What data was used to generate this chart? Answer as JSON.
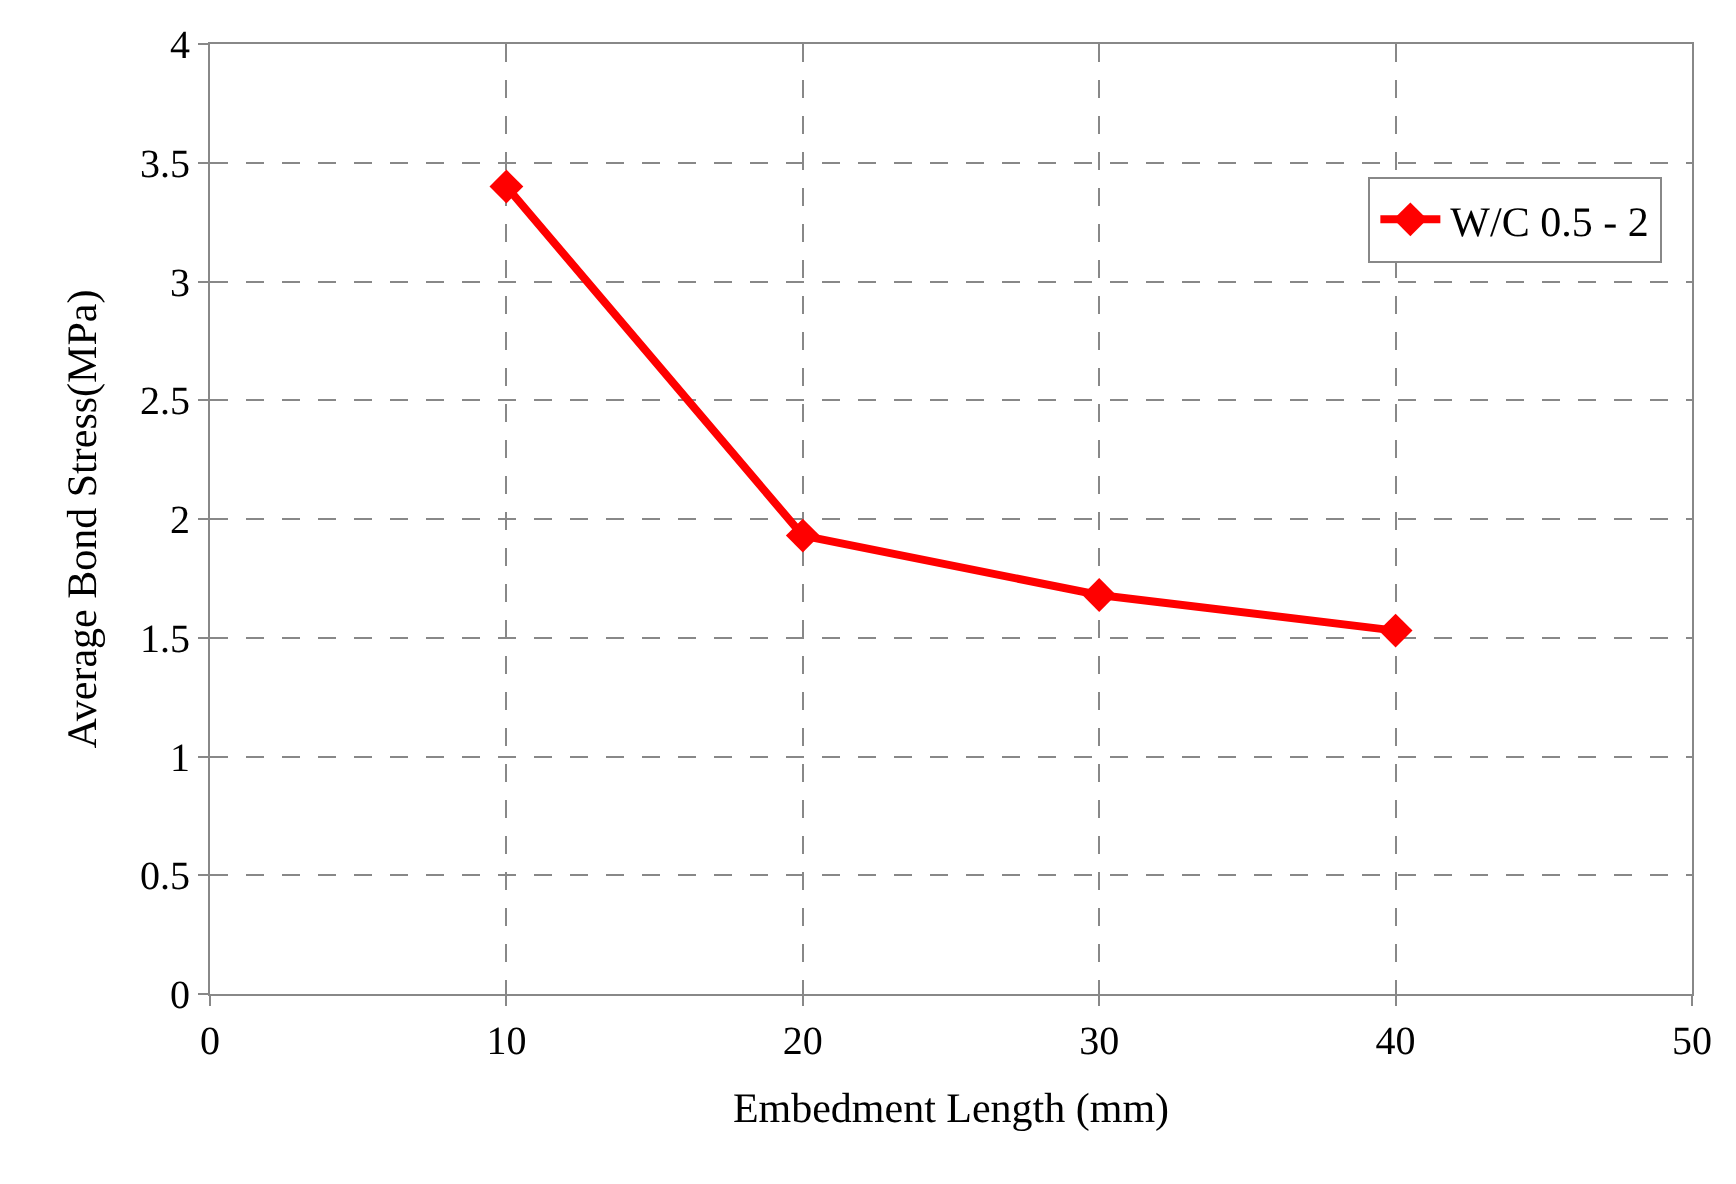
{
  "chart_data": {
    "type": "line",
    "xlabel": "Embedment Length (mm)",
    "ylabel": "Average Bond Stress(MPa)",
    "x": [
      10,
      20,
      30,
      40
    ],
    "series": [
      {
        "name": "W/C 0.5 - 2",
        "color": "#ff0000",
        "values": [
          3.4,
          1.93,
          1.68,
          1.53
        ]
      }
    ],
    "xlim": [
      0,
      50
    ],
    "xticks": [
      0,
      10,
      20,
      30,
      40,
      50
    ],
    "ylim": [
      0,
      4
    ],
    "yticks": [
      0,
      0.5,
      1,
      1.5,
      2,
      2.5,
      3,
      3.5,
      4
    ],
    "grid": true,
    "legend": "top right",
    "marker": "diamond",
    "line_style": "solid"
  }
}
